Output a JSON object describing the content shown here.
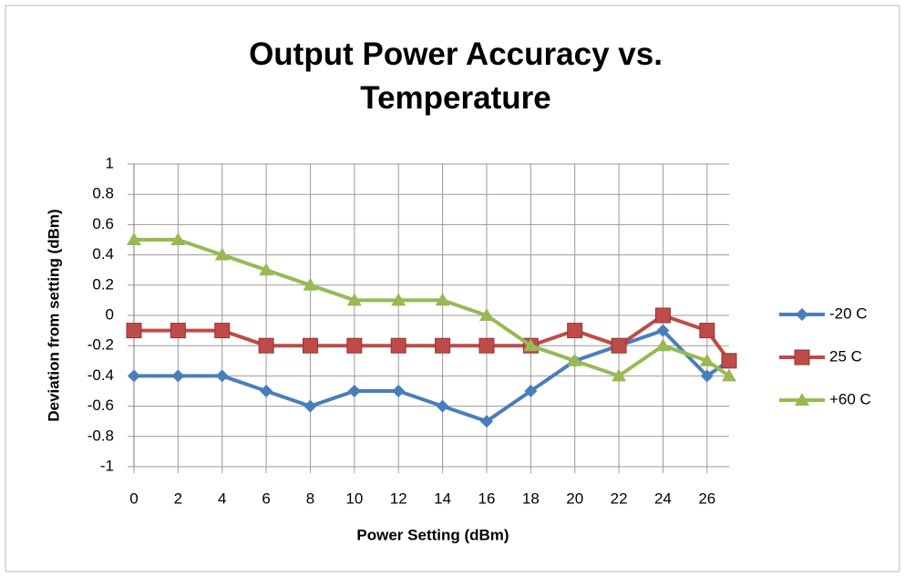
{
  "chart_data": {
    "type": "line",
    "title": "Output Power Accuracy vs. Temperature",
    "x_label": "Power Setting (dBm)",
    "y_label": "Deviation from setting (dBm)",
    "x": [
      0,
      2,
      4,
      6,
      8,
      10,
      12,
      14,
      16,
      18,
      20,
      22,
      24,
      26,
      27
    ],
    "series": [
      {
        "name": "-20 C",
        "color": "#4a7ebb",
        "marker": "diamond",
        "values": [
          -0.4,
          -0.4,
          -0.4,
          -0.5,
          -0.6,
          -0.5,
          -0.5,
          -0.6,
          -0.7,
          -0.5,
          -0.3,
          -0.2,
          -0.1,
          -0.4,
          -0.3
        ]
      },
      {
        "name": "25 C",
        "color": "#be4b48",
        "marker": "square",
        "values": [
          -0.1,
          -0.1,
          -0.1,
          -0.2,
          -0.2,
          -0.2,
          -0.2,
          -0.2,
          -0.2,
          -0.2,
          -0.1,
          -0.2,
          0,
          -0.1,
          -0.3
        ]
      },
      {
        "name": "+60 C",
        "color": "#98b954",
        "marker": "triangle",
        "values": [
          0.5,
          0.5,
          0.4,
          0.3,
          0.2,
          0.1,
          0.1,
          0.1,
          0,
          -0.2,
          -0.3,
          -0.4,
          -0.2,
          -0.3,
          -0.4
        ]
      }
    ],
    "xlim": [
      0,
      27
    ],
    "xticks": [
      0,
      2,
      4,
      6,
      8,
      10,
      12,
      14,
      16,
      18,
      20,
      22,
      24,
      26
    ],
    "ylim": [
      -1,
      1
    ],
    "yticks": [
      -1,
      -0.8,
      -0.6,
      -0.4,
      -0.2,
      0,
      0.2,
      0.4,
      0.6,
      0.8,
      1
    ],
    "grid": true,
    "legend": "right"
  }
}
